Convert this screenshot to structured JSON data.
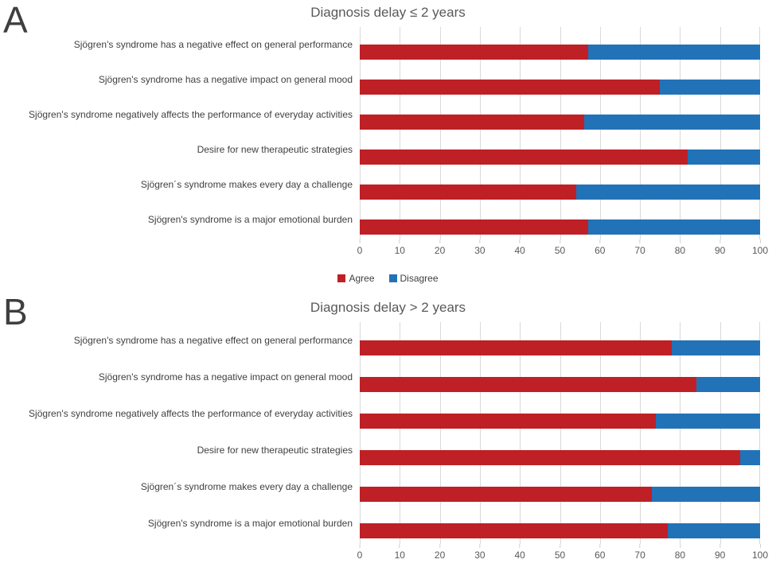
{
  "colors": {
    "agree": "#be2026",
    "disagree": "#2272b8",
    "gridline": "#d9d9d9",
    "title_text": "#595959",
    "label_text": "#404040"
  },
  "legend": {
    "items": [
      {
        "label": "Agree",
        "color_key": "agree"
      },
      {
        "label": "Disagree",
        "color_key": "disagree"
      }
    ]
  },
  "chart_data": [
    {
      "type": "bar",
      "orientation": "horizontal",
      "stacked": true,
      "panel": "A",
      "title": "Diagnosis delay ≤ 2 years",
      "categories": [
        "Sjögren's syndrome has a negative effect on general performance",
        "Sjögren's syndrome has a negative impact on general mood",
        "Sjögren's syndrome negatively affects the performance of everyday activities",
        "Desire for new therapeutic strategies",
        "Sjögren´s syndrome makes every day a challenge",
        "Sjögren's syndrome is a major emotional burden"
      ],
      "series": [
        {
          "name": "Agree",
          "color": "#be2026",
          "values": [
            57,
            75,
            56,
            82,
            54,
            57
          ]
        },
        {
          "name": "Disagree",
          "color": "#2272b8",
          "values": [
            43,
            25,
            44,
            18,
            46,
            43
          ]
        }
      ],
      "xlim": [
        0,
        100
      ],
      "x_ticks": [
        0,
        10,
        20,
        30,
        40,
        50,
        60,
        70,
        80,
        90,
        100
      ],
      "grid": "vertical",
      "legend_visible": true,
      "legend_position": "bottom"
    },
    {
      "type": "bar",
      "orientation": "horizontal",
      "stacked": true,
      "panel": "B",
      "title": "Diagnosis delay > 2 years",
      "categories": [
        "Sjögren's syndrome has a negative effect on general performance",
        "Sjögren's syndrome has a negative impact on general mood",
        "Sjögren's syndrome negatively affects the performance of everyday activities",
        "Desire for new therapeutic strategies",
        "Sjögren´s syndrome makes every day a challenge",
        "Sjögren's syndrome is a major emotional burden"
      ],
      "series": [
        {
          "name": "Agree",
          "color": "#be2026",
          "values": [
            78,
            84,
            74,
            95,
            73,
            77
          ]
        },
        {
          "name": "Disagree",
          "color": "#2272b8",
          "values": [
            22,
            16,
            26,
            5,
            27,
            23
          ]
        }
      ],
      "xlim": [
        0,
        100
      ],
      "x_ticks": [
        0,
        10,
        20,
        30,
        40,
        50,
        60,
        70,
        80,
        90,
        100
      ],
      "grid": "vertical",
      "legend_visible": false
    }
  ]
}
